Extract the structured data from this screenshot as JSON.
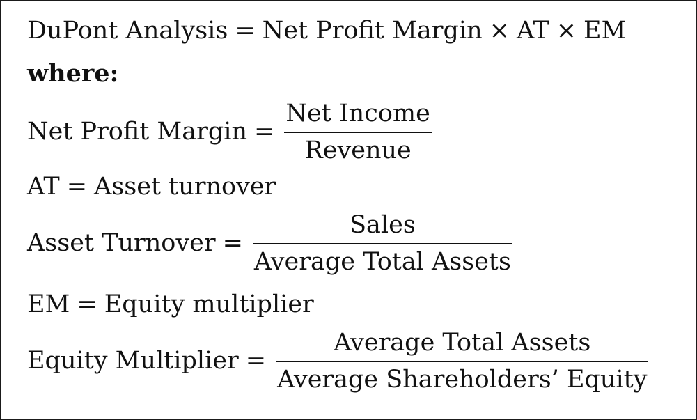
{
  "title": {
    "lhs": "DuPont Analysis",
    "eq": "=",
    "term1": "Net Profit Margin",
    "times1": "×",
    "term2": "AT",
    "times2": "×",
    "term3": "EM"
  },
  "where_label": "where:",
  "npm": {
    "lhs": "Net Profit Margin",
    "eq": "=",
    "numerator": "Net Income",
    "denominator": "Revenue"
  },
  "at_def": {
    "lhs": "AT",
    "eq": "=",
    "rhs": "Asset turnover"
  },
  "asset_turnover": {
    "lhs": "Asset Turnover",
    "eq": "=",
    "numerator": "Sales",
    "denominator": "Average Total Assets"
  },
  "em_def": {
    "lhs": "EM",
    "eq": "=",
    "rhs": "Equity multiplier"
  },
  "equity_multiplier": {
    "lhs": "Equity Multiplier",
    "eq": "=",
    "numerator": "Average Total Assets",
    "denominator": "Average Shareholders’ Equity"
  }
}
